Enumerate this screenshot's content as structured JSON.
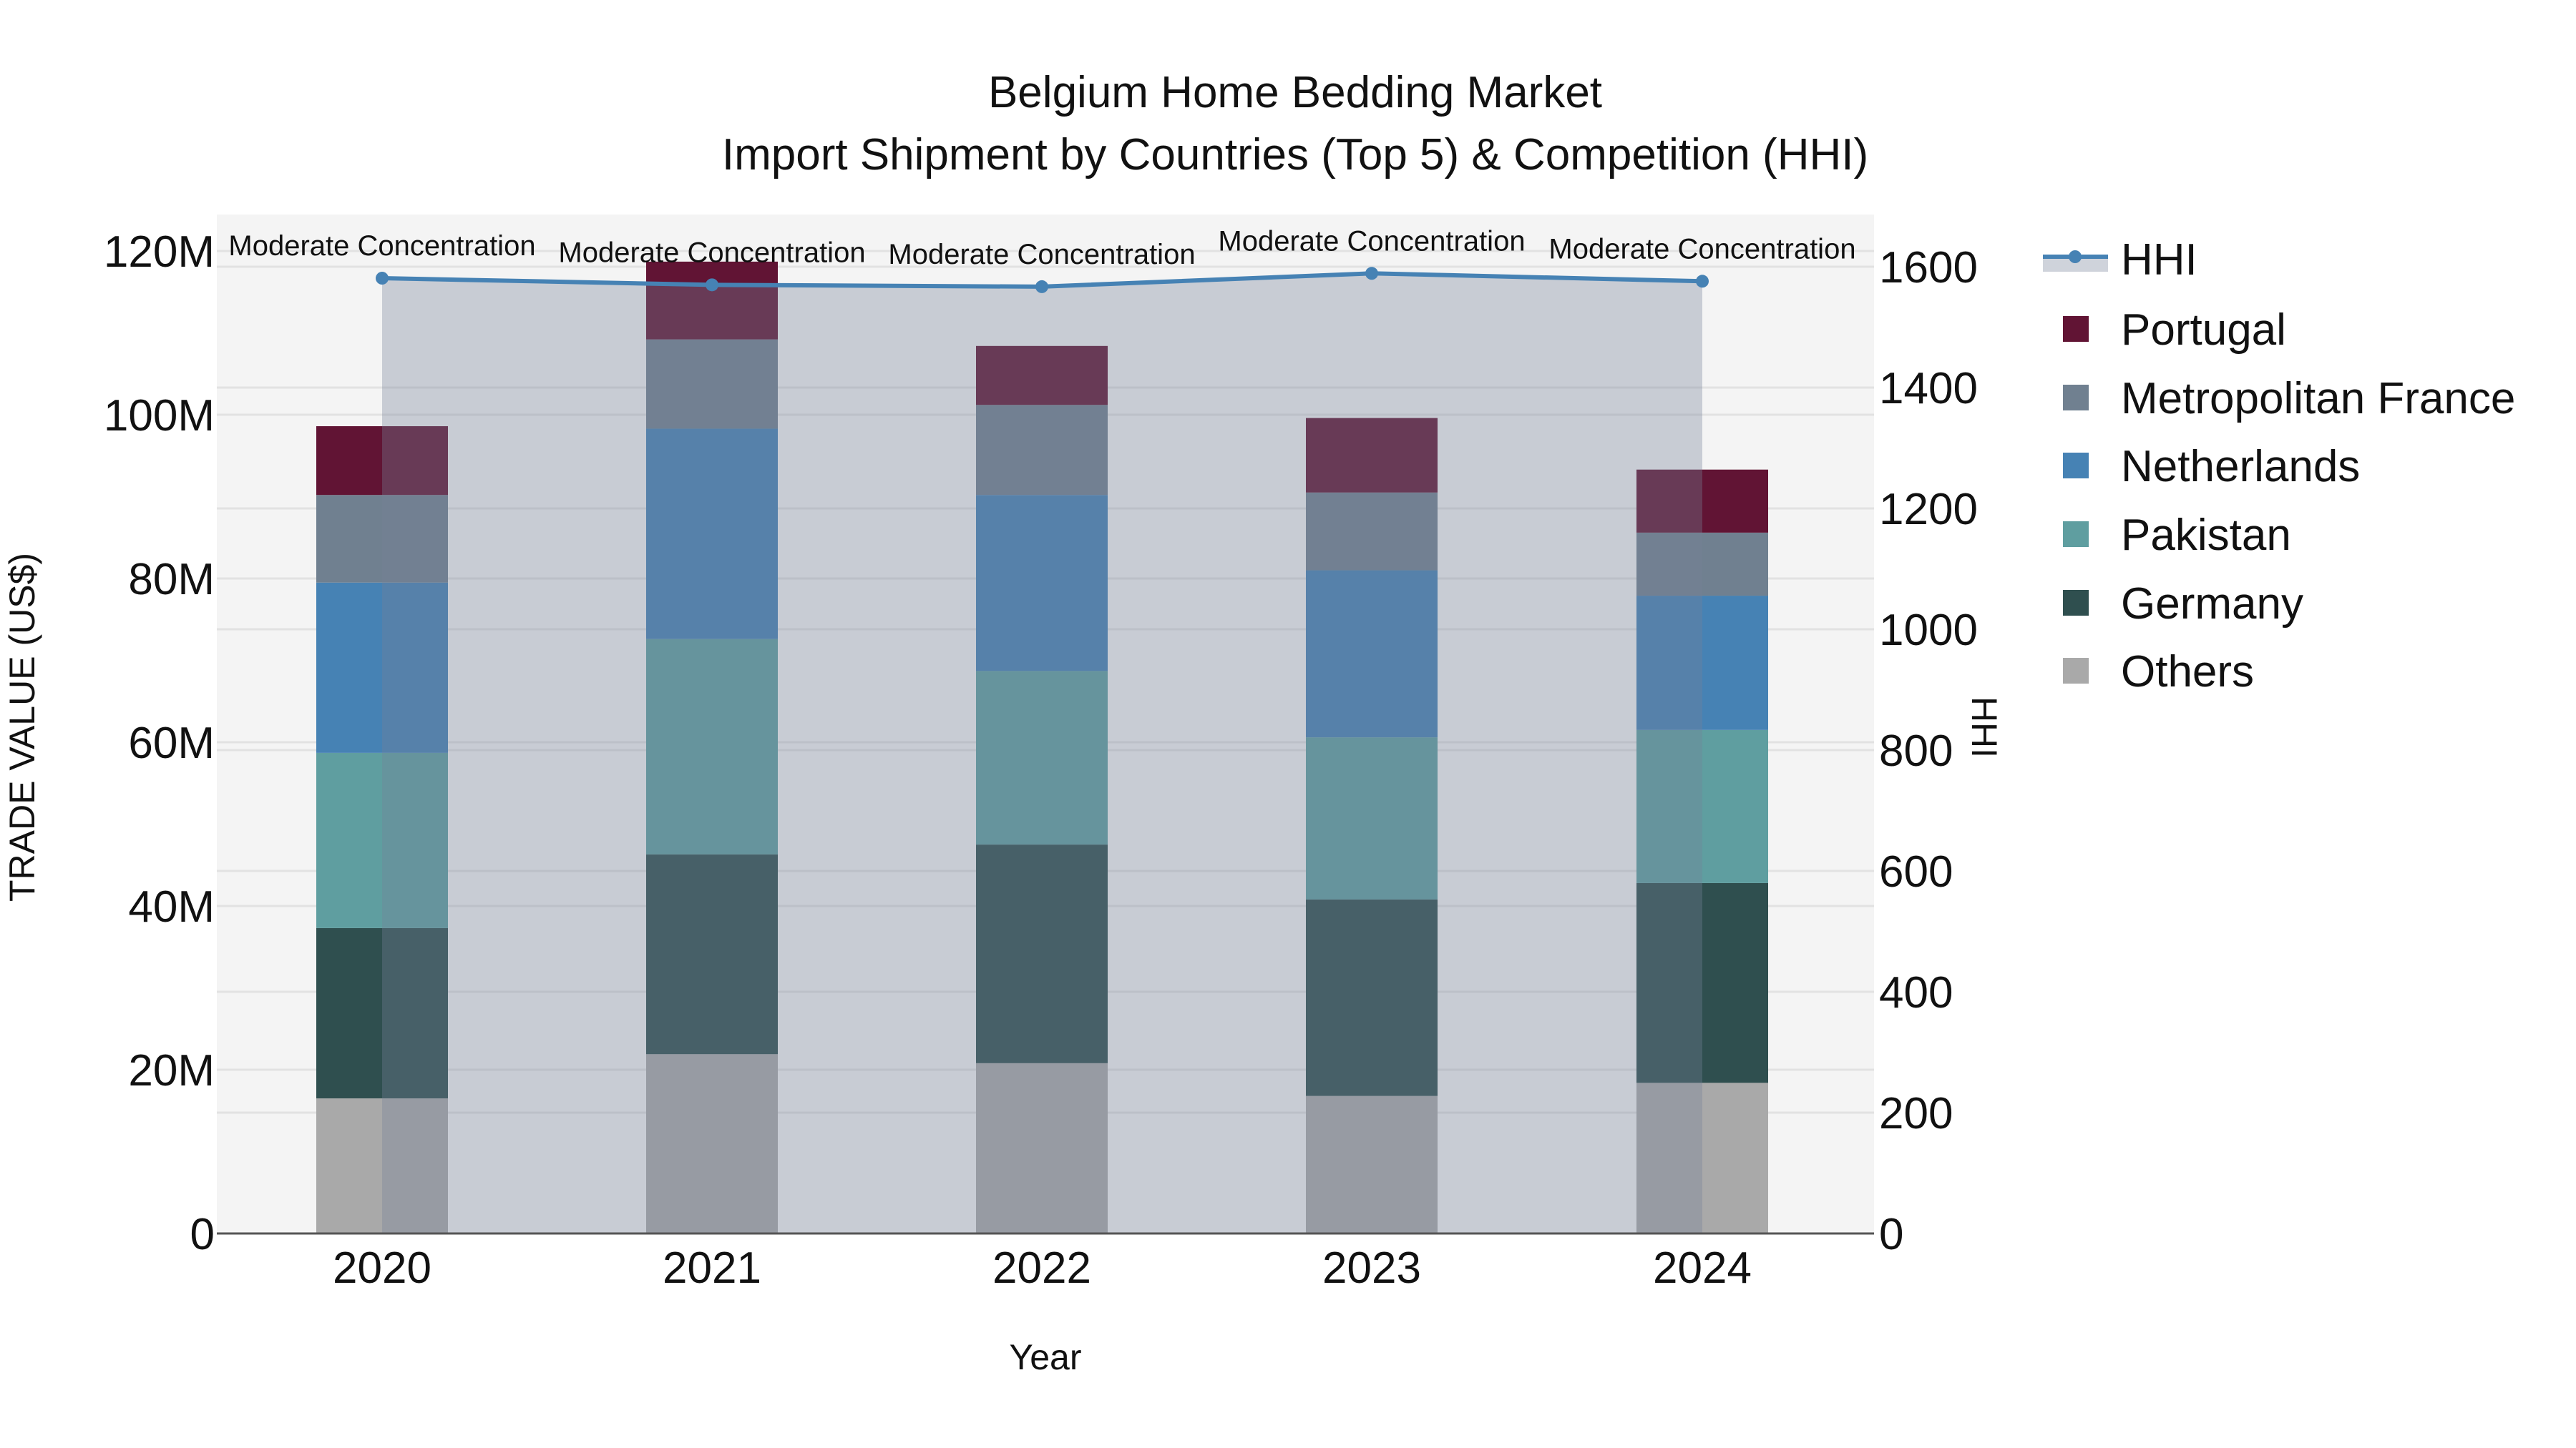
{
  "title": {
    "line1": "Belgium Home Bedding Market",
    "line2": "Import Shipment by Countries (Top 5) & Competition (HHI)"
  },
  "axes": {
    "x_title": "Year",
    "y_left_title": "TRADE VALUE (US$)",
    "y_right_title": "HHI",
    "y_left_ticks": [
      "0",
      "20M",
      "40M",
      "60M",
      "80M",
      "100M",
      "120M"
    ],
    "y_left_tick_values": [
      0,
      20,
      40,
      60,
      80,
      100,
      120
    ],
    "y_right_ticks": [
      "0",
      "200",
      "400",
      "600",
      "800",
      "1000",
      "1200",
      "1400",
      "1600"
    ],
    "y_right_tick_values": [
      0,
      200,
      400,
      600,
      800,
      1000,
      1200,
      1400,
      1600
    ]
  },
  "legend": [
    {
      "label": "HHI",
      "type": "line",
      "color": "#4682b4"
    },
    {
      "label": "Portugal",
      "type": "square",
      "color": "#611434"
    },
    {
      "label": "Metropolitan France",
      "type": "square",
      "color": "#708090"
    },
    {
      "label": "Netherlands",
      "type": "square",
      "color": "#4682b4"
    },
    {
      "label": "Pakistan",
      "type": "square",
      "color": "#5f9ea0"
    },
    {
      "label": "Germany",
      "type": "square",
      "color": "#2f4f4f"
    },
    {
      "label": "Others",
      "type": "square",
      "color": "#a9a9a9"
    }
  ],
  "colors": {
    "plot_bg": "#f4f4f4",
    "grid": "#e2e2e2",
    "hhi_line": "#4682b4",
    "hhi_fill": "rgba(118,129,152,0.35)",
    "axis_line": "#555555"
  },
  "chart_data": {
    "type": "bar",
    "stacked": true,
    "title": "Belgium Home Bedding Market — Import Shipment by Countries (Top 5) & Competition (HHI)",
    "xlabel": "Year",
    "ylabel": "TRADE VALUE (US$)",
    "y2label": "HHI",
    "ylim": [
      0,
      124
    ],
    "y2lim": [
      0,
      1690
    ],
    "unit": "M US$",
    "categories": [
      "2020",
      "2021",
      "2022",
      "2023",
      "2024"
    ],
    "series": [
      {
        "name": "Others",
        "color": "#a9a9a9",
        "values": [
          16.5,
          21.9,
          20.8,
          16.8,
          18.4
        ]
      },
      {
        "name": "Germany",
        "color": "#2f4f4f",
        "values": [
          20.8,
          24.4,
          26.7,
          24.0,
          24.4
        ]
      },
      {
        "name": "Pakistan",
        "color": "#5f9ea0",
        "values": [
          21.4,
          26.3,
          21.2,
          19.8,
          18.7
        ]
      },
      {
        "name": "Netherlands",
        "color": "#4682b4",
        "values": [
          20.8,
          25.7,
          21.5,
          20.4,
          16.4
        ]
      },
      {
        "name": "Metropolitan France",
        "color": "#708090",
        "values": [
          10.7,
          10.9,
          11.0,
          9.5,
          7.7
        ]
      },
      {
        "name": "Portugal",
        "color": "#611434",
        "values": [
          8.4,
          9.5,
          7.2,
          9.1,
          7.7
        ]
      }
    ],
    "line_series": {
      "name": "HHI",
      "axis": "right",
      "type": "area-line",
      "values": [
        1581,
        1570,
        1567,
        1589,
        1576
      ],
      "annotations": [
        "Moderate Concentration",
        "Moderate Concentration",
        "Moderate Concentration",
        "Moderate Concentration",
        "Moderate Concentration"
      ]
    },
    "legend_position": "right",
    "grid": true
  }
}
